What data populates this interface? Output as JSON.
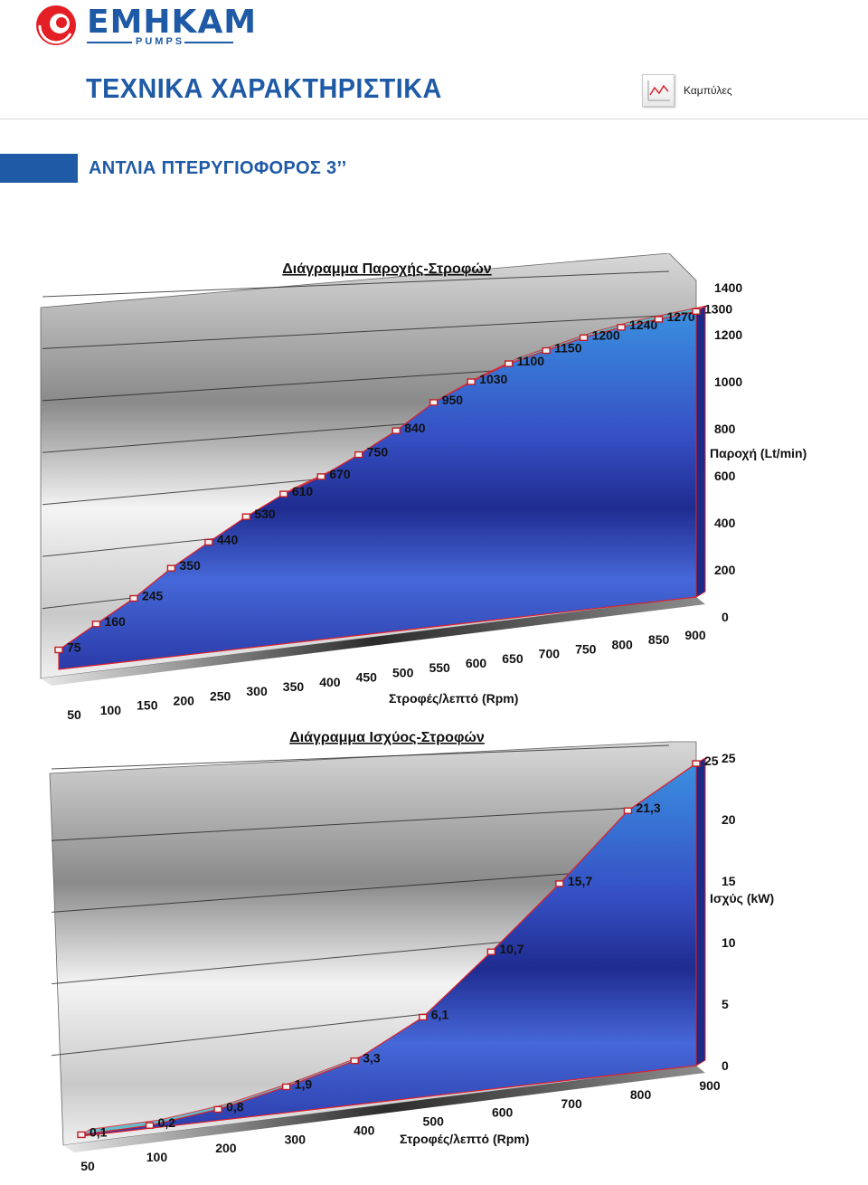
{
  "header": {
    "brand": "EMHKAM",
    "brand_sub": "PUMPS",
    "page_title": "ΤΕΧΝΙΚΑ ΧΑΡΑΚΤΗΡΙΣΤΙΚΑ",
    "curves_label": "Καμπύλες",
    "curves_icon": "line-chart-icon",
    "logo_icon": "brand-swirl-icon",
    "accent_color": "#1f5aa6",
    "logo_red": "#e31e24"
  },
  "section": {
    "title": "ΑΝΤΛΙΑ ΠΤΕΡΥΓΙΟΦΟΡΟΣ 3’’"
  },
  "chart_data": [
    {
      "type": "area",
      "style": "3d",
      "title": "Διάγραμμα Παροχής-Στροφών",
      "xlabel": "Στροφές/λεπτό (Rpm)",
      "ylabel": "Παροχή (Lt/min)",
      "x": [
        50,
        100,
        150,
        200,
        250,
        300,
        350,
        400,
        450,
        500,
        550,
        600,
        650,
        700,
        750,
        800,
        850,
        900
      ],
      "values": [
        75,
        160,
        245,
        350,
        440,
        530,
        610,
        670,
        750,
        840,
        950,
        1030,
        1100,
        1150,
        1200,
        1240,
        1270,
        1300
      ],
      "data_labels": [
        "75",
        "160",
        "245",
        "350",
        "440",
        "530",
        "610",
        "670",
        "750",
        "840",
        "950",
        "1030",
        "1100",
        "1150",
        "1200",
        "1240",
        "1270",
        "1300"
      ],
      "yticks": [
        "0",
        "200",
        "400",
        "600",
        "800",
        "1000",
        "1200",
        "1400"
      ],
      "ylim": [
        0,
        1400
      ],
      "grid": true,
      "legend": false,
      "colors": {
        "area": "#2c46b8",
        "line": "#e0202a",
        "top": "#4fb6c7"
      }
    },
    {
      "type": "area",
      "style": "3d",
      "title": "Διάγραμμα Ισχύος-Στροφών",
      "xlabel": "Στροφές/λεπτό (Rpm)",
      "ylabel": "Ισχύς (kW)",
      "x": [
        50,
        100,
        200,
        300,
        400,
        500,
        600,
        700,
        800,
        900
      ],
      "values": [
        0.1,
        0.2,
        0.8,
        1.9,
        3.3,
        6.1,
        10.7,
        15.7,
        21.3,
        25
      ],
      "data_labels": [
        "0,1",
        "0,2",
        "0,8",
        "1,9",
        "3,3",
        "6,1",
        "10,7",
        "15,7",
        "21,3",
        "25"
      ],
      "yticks": [
        "0",
        "5",
        "10",
        "15",
        "20",
        "25"
      ],
      "ylim": [
        0,
        25
      ],
      "grid": true,
      "legend": false,
      "colors": {
        "area": "#2c46b8",
        "line": "#e0202a",
        "top": "#4fb6c7"
      }
    }
  ]
}
